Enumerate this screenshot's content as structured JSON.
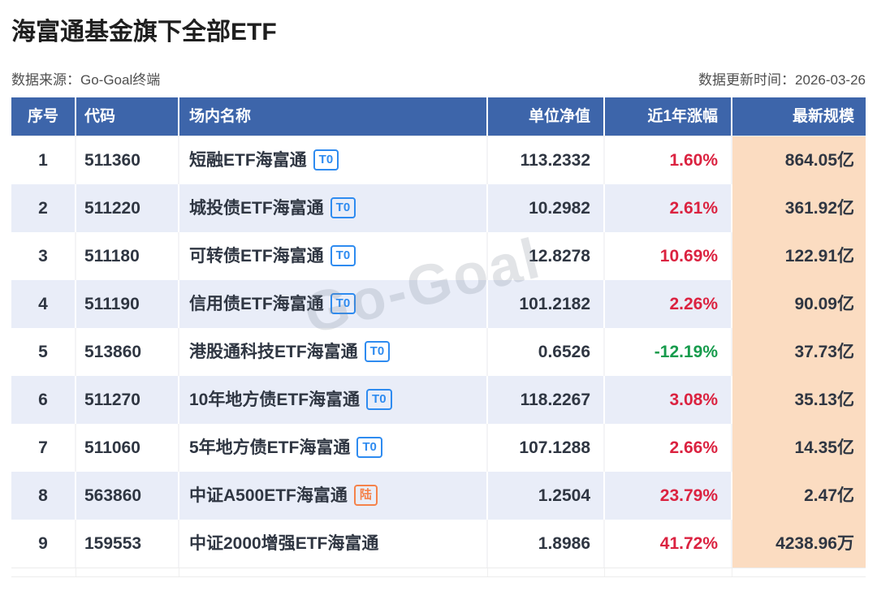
{
  "page": {
    "title": "海富通基金旗下全部ETF",
    "source_label": "数据来源：Go-Goal终端",
    "updated_label": "数据更新时间：2026-03-26",
    "watermark": "Go-Goal"
  },
  "colors": {
    "header_bg": "#3D65AA",
    "row_alt_bg": "#E9EDF8",
    "scale_col_bg": "#FBDCC1",
    "positive_change": "#DB2240",
    "negative_change": "#169B4C",
    "badge_blue": "#2E8BF0",
    "badge_orange": "#F5824A"
  },
  "chart_data": {
    "type": "table",
    "title": "海富通基金旗下全部ETF",
    "source": "数据来源：Go-Goal终端",
    "updated": "2026-03-26",
    "columns": [
      "序号",
      "代码",
      "场内名称",
      "单位净值",
      "近1年涨幅",
      "最新规模"
    ],
    "rows": [
      {
        "no": "1",
        "code": "511360",
        "name": "短融ETF海富通",
        "badge": "T0",
        "badge_color": "blue",
        "nav": "113.2332",
        "change": "1.60%",
        "scale": "864.05亿"
      },
      {
        "no": "2",
        "code": "511220",
        "name": "城投债ETF海富通",
        "badge": "T0",
        "badge_color": "blue",
        "nav": "10.2982",
        "change": "2.61%",
        "scale": "361.92亿"
      },
      {
        "no": "3",
        "code": "511180",
        "name": "可转债ETF海富通",
        "badge": "T0",
        "badge_color": "blue",
        "nav": "12.8278",
        "change": "10.69%",
        "scale": "122.91亿"
      },
      {
        "no": "4",
        "code": "511190",
        "name": "信用债ETF海富通",
        "badge": "T0",
        "badge_color": "blue",
        "nav": "101.2182",
        "change": "2.26%",
        "scale": "90.09亿"
      },
      {
        "no": "5",
        "code": "513860",
        "name": "港股通科技ETF海富通",
        "badge": "T0",
        "badge_color": "blue",
        "nav": "0.6526",
        "change": "-12.19%",
        "scale": "37.73亿"
      },
      {
        "no": "6",
        "code": "511270",
        "name": "10年地方债ETF海富通",
        "badge": "T0",
        "badge_color": "blue",
        "nav": "118.2267",
        "change": "3.08%",
        "scale": "35.13亿"
      },
      {
        "no": "7",
        "code": "511060",
        "name": "5年地方债ETF海富通",
        "badge": "T0",
        "badge_color": "blue",
        "nav": "107.1288",
        "change": "2.66%",
        "scale": "14.35亿"
      },
      {
        "no": "8",
        "code": "563860",
        "name": "中证A500ETF海富通",
        "badge": "陆",
        "badge_color": "orange",
        "nav": "1.2504",
        "change": "23.79%",
        "scale": "2.47亿"
      },
      {
        "no": "9",
        "code": "159553",
        "name": "中证2000增强ETF海富通",
        "badge": "",
        "badge_color": "",
        "nav": "1.8986",
        "change": "41.72%",
        "scale": "4238.96万"
      }
    ]
  }
}
